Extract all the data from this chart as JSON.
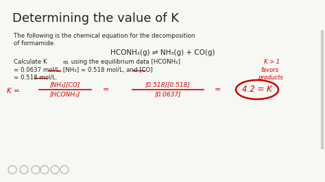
{
  "background_color": "#f7f7f3",
  "title": "Determining the value of K",
  "title_color": "#222222",
  "body_color": "#222222",
  "red_color": "#cc0000",
  "title_fontsize": 13,
  "body_fontsize": 6.2,
  "eq_fontsize": 7.5,
  "red_fontsize": 6.0,
  "line1": "The following is the chemical equation for the decomposition",
  "line2": "of formamide.",
  "equation": "HCONH₂(g) ⇌ NH₃(g) + CO(g)",
  "calc_line2": "= 0.0637 mol/L, [NH₃] = 0.518 mol/L, and [CO]",
  "calc_line3": "= 0.518 mol/L.",
  "annot_k1": "K > 1",
  "annot_k2": "favors",
  "annot_k3": "products",
  "formula_lhs_num": "[NH₃][CO]",
  "formula_lhs_den": "[HCONH₂]",
  "formula_rhs_num": "[0.518][0.518]",
  "formula_rhs_den": "[0.0637]",
  "formula_result": "4.2 = K"
}
